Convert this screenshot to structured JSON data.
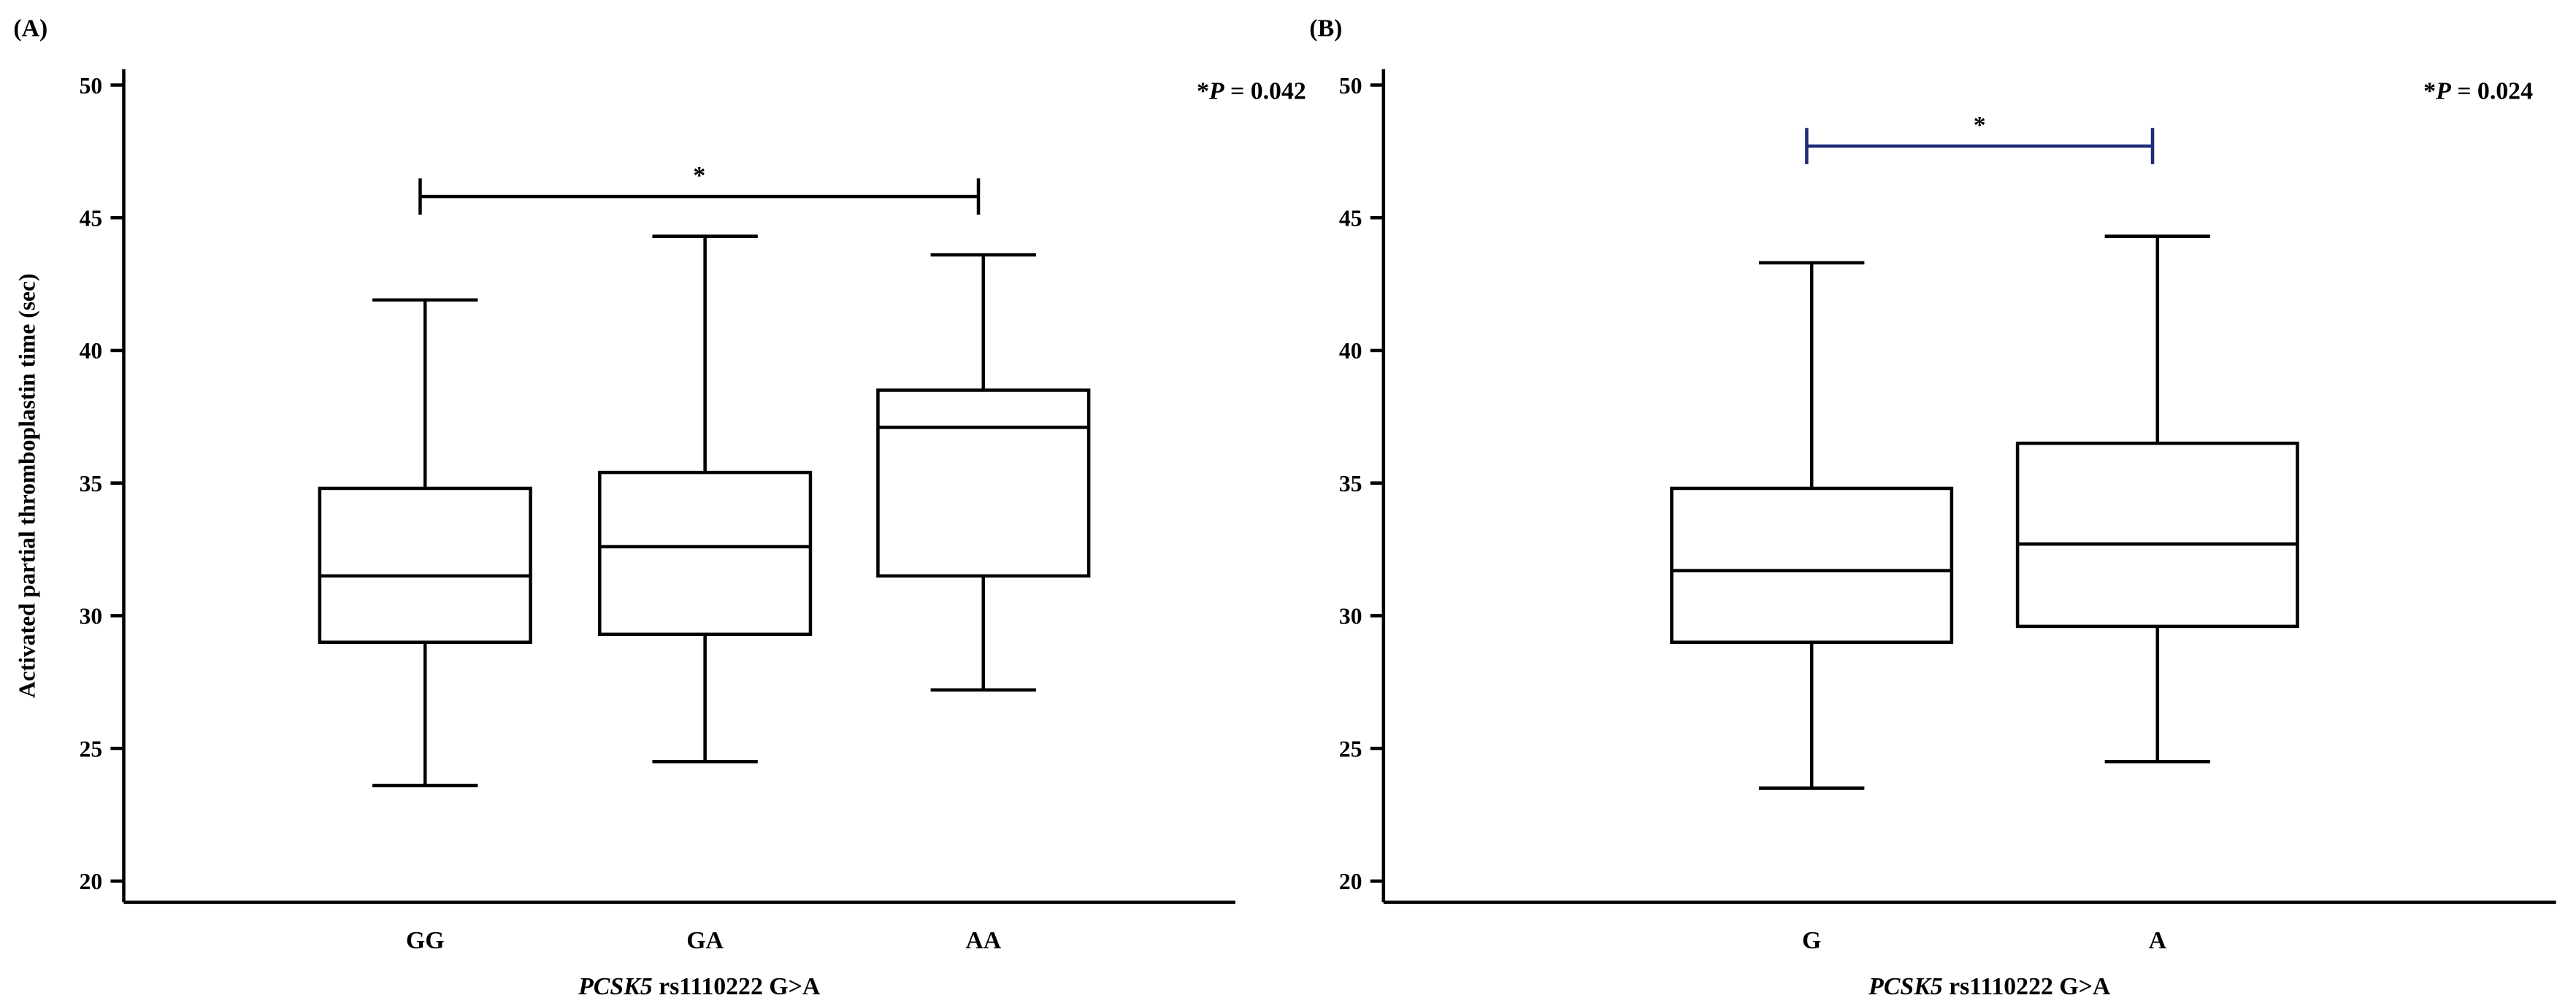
{
  "chart_data": [
    {
      "type": "box",
      "panel": "(A)",
      "p_value": [
        "*",
        "P",
        " = 0.042"
      ],
      "ylabel": "Activated partial thromboplastin time (sec)",
      "xlabel": [
        "PCSK5",
        " rs1110222 G>A"
      ],
      "categories": [
        "GG",
        "GA",
        "AA"
      ],
      "boxes": [
        {
          "min": 23.6,
          "q1": 29.0,
          "median": 31.5,
          "q3": 34.8,
          "max": 41.9
        },
        {
          "min": 24.5,
          "q1": 29.3,
          "median": 32.6,
          "q3": 35.4,
          "max": 44.3
        },
        {
          "min": 27.2,
          "q1": 31.5,
          "median": 37.1,
          "q3": 38.5,
          "max": 43.6
        }
      ],
      "bracket": {
        "label": "*",
        "value": 45.8,
        "color": "#000000"
      },
      "ylim": [
        19.2,
        50.6
      ],
      "yticks": [
        20,
        25,
        30,
        35,
        40,
        45,
        50
      ]
    },
    {
      "type": "box",
      "panel": "(B)",
      "p_value": [
        "*",
        "P",
        " = 0.024"
      ],
      "xlabel": [
        "PCSK5",
        " rs1110222 G>A"
      ],
      "categories": [
        "G",
        "A"
      ],
      "boxes": [
        {
          "min": 23.5,
          "q1": 29.0,
          "median": 31.7,
          "q3": 34.8,
          "max": 43.3
        },
        {
          "min": 24.5,
          "q1": 29.6,
          "median": 32.7,
          "q3": 36.5,
          "max": 44.3
        }
      ],
      "bracket": {
        "label": "*",
        "value": 47.7,
        "color": "#1f2a7a"
      },
      "ylim": [
        19.2,
        50.6
      ],
      "yticks": [
        20,
        25,
        30,
        35,
        40,
        45,
        50
      ]
    }
  ]
}
